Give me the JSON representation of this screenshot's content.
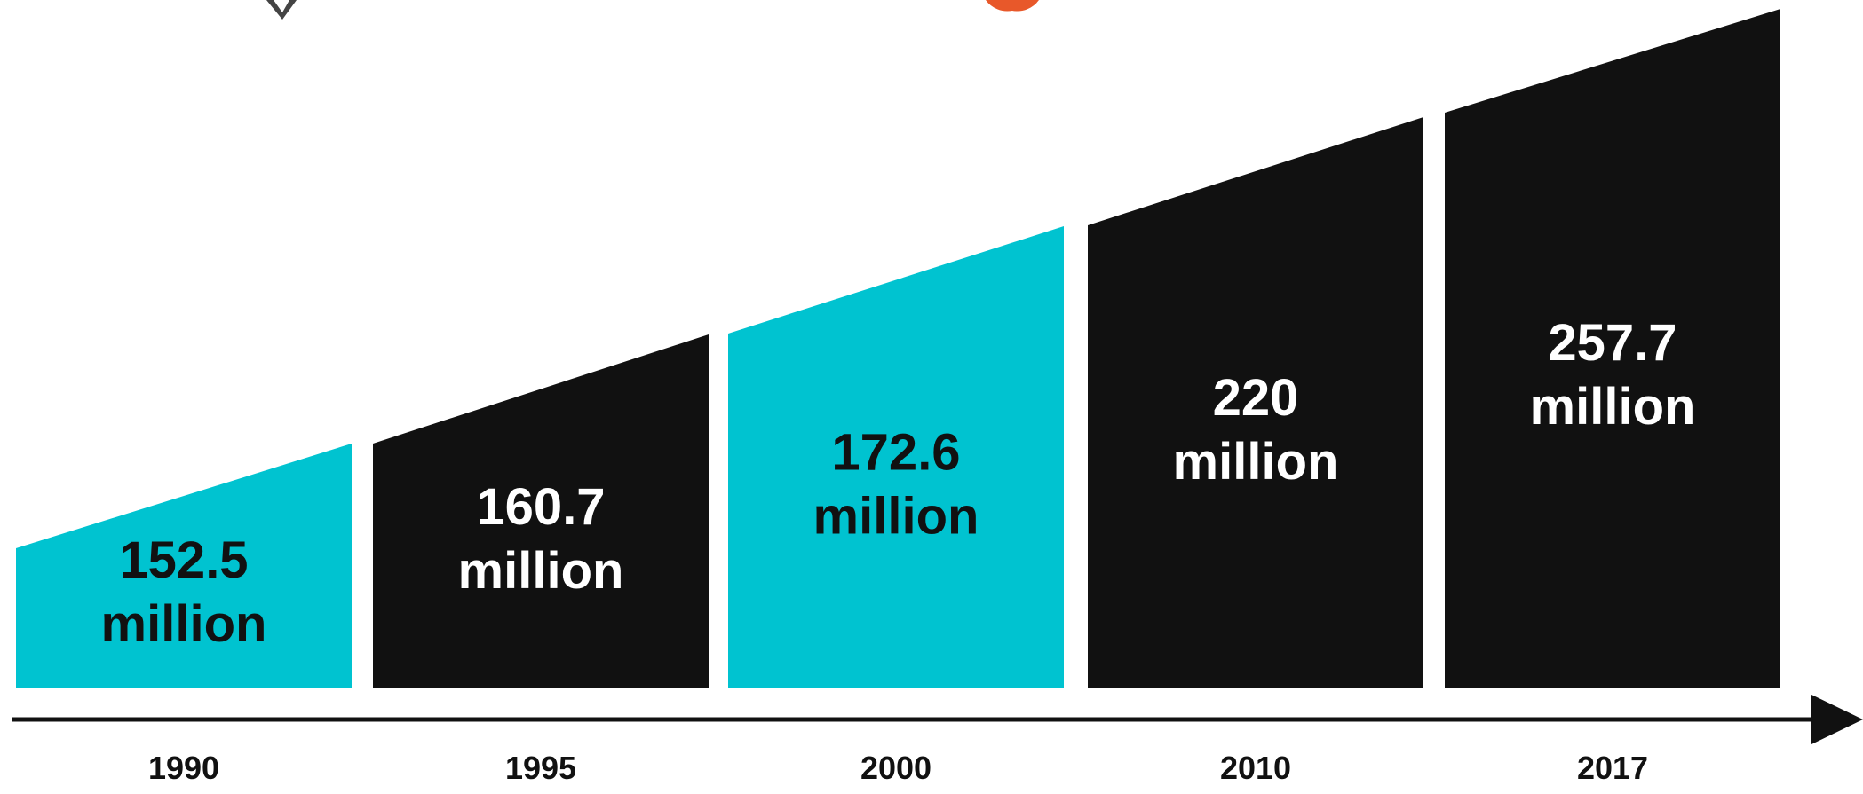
{
  "colors": {
    "teal": "#00C3D0",
    "black": "#111111",
    "white": "#FFFFFF",
    "orange": "#E8582A",
    "axis": "#111111",
    "header_gray": "#444444"
  },
  "chart_data": {
    "type": "bar",
    "categories": [
      "1990",
      "1995",
      "2000",
      "2010",
      "2017"
    ],
    "values": [
      152.5,
      160.7,
      172.6,
      220,
      257.7
    ],
    "value_lines": [
      [
        "152.5",
        "million"
      ],
      [
        "160.7",
        "million"
      ],
      [
        "172.6",
        "million"
      ],
      [
        "220",
        "million"
      ],
      [
        "257.7",
        "million"
      ]
    ],
    "bar_colors": [
      "teal",
      "black",
      "teal",
      "black",
      "black"
    ],
    "label_colors": [
      "black",
      "white",
      "black",
      "white",
      "white"
    ],
    "xlabel": "",
    "ylabel": "",
    "title": "",
    "grid": false,
    "legend": "none",
    "x_axis_arrow": true
  }
}
